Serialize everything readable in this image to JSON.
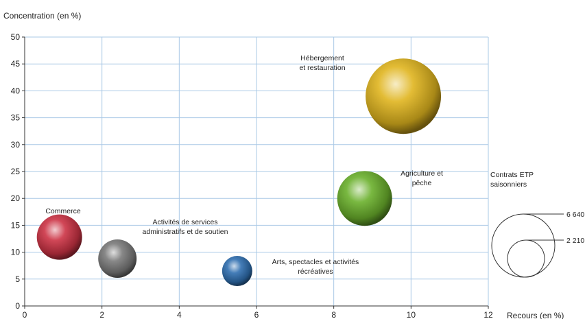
{
  "chart_data": {
    "type": "bubble",
    "ylabel": "Concentration (en %)",
    "xlabel": "Recours (en %)",
    "xlim": [
      0,
      12
    ],
    "ylim": [
      0,
      50
    ],
    "xticks": [
      0,
      2,
      4,
      6,
      8,
      10,
      12
    ],
    "yticks": [
      0,
      5,
      10,
      15,
      20,
      25,
      30,
      35,
      40,
      45,
      50
    ],
    "grid": true,
    "points": [
      {
        "name": "Commerce",
        "label_lines": [
          "Commerce"
        ],
        "x": 0.9,
        "y": 12.8,
        "color": "#cc3344"
      },
      {
        "name": "Activités de services administratifs et de soutien",
        "label_lines": [
          "Activités de services",
          "administratifs et de soutien"
        ],
        "x": 2.4,
        "y": 8.8,
        "color": "#7a7a7a"
      },
      {
        "name": "Arts, spectacles et activités récréatives",
        "label_lines": [
          "Arts, spectacles et activités",
          "récréatives"
        ],
        "x": 5.5,
        "y": 6.5,
        "color": "#2f6fb0"
      },
      {
        "name": "Agriculture et pêche",
        "label_lines": [
          "Agriculture et",
          "pêche"
        ],
        "x": 8.8,
        "y": 20.0,
        "color": "#6ab02c"
      },
      {
        "name": "Hébergement et restauration",
        "label_lines": [
          "Hébergement",
          "et restauration"
        ],
        "x": 9.8,
        "y": 39.0,
        "color": "#e0b51e"
      }
    ],
    "legend": {
      "title_lines": [
        "Contrats ETP",
        "saisonniers"
      ],
      "entries": [
        {
          "label": "6 640"
        },
        {
          "label": "2 210"
        }
      ]
    }
  }
}
